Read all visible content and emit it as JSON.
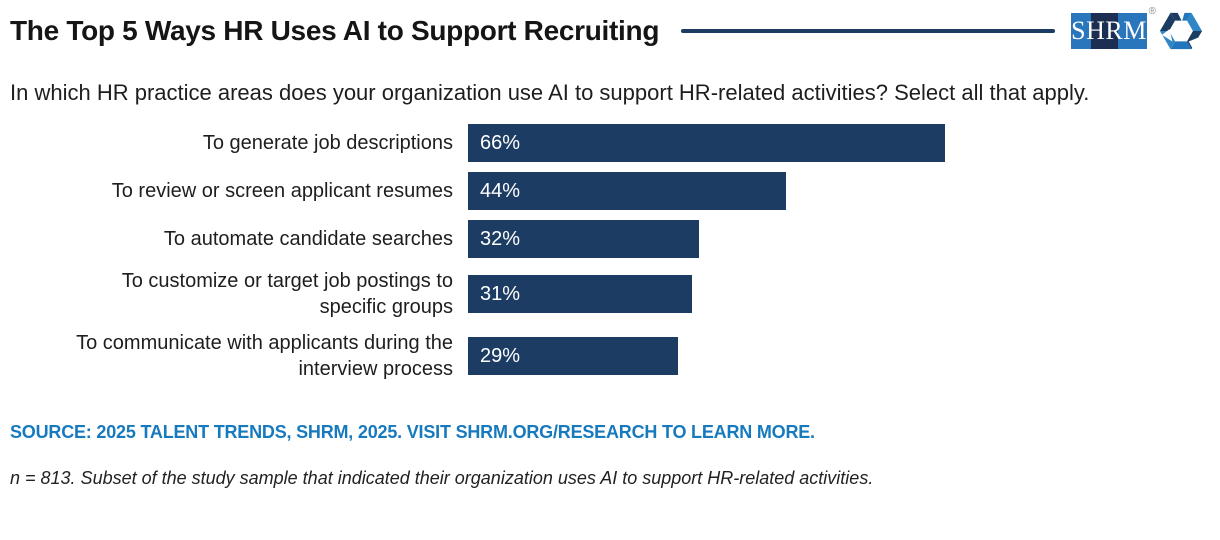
{
  "header": {
    "title": "The Top 5 Ways HR Uses AI to Support Recruiting",
    "divider_color": "#1d3c63",
    "logo": {
      "wordmark": "SHRM",
      "registered": "®",
      "block_blue": "#2a76bd",
      "block_dark": "#1c2f52",
      "hexagon_colors": [
        "#1d3c63",
        "#2176bd",
        "#2e86c6"
      ]
    }
  },
  "question": "In which HR practice areas does your organization use AI to support HR-related activities? Select all that apply.",
  "chart_data": {
    "type": "bar",
    "orientation": "horizontal",
    "categories": [
      "To generate job descriptions",
      "To review or screen applicant resumes",
      "To automate candidate searches",
      "To customize or target job postings to\nspecific groups",
      "To communicate with applicants during the\ninterview process"
    ],
    "values": [
      66,
      44,
      32,
      31,
      29
    ],
    "value_labels": [
      "66%",
      "44%",
      "32%",
      "31%",
      "29%"
    ],
    "bar_color": "#1d3c63",
    "value_label_color": "#ffffff",
    "xlim": [
      0,
      100
    ],
    "grid": false,
    "legend": false
  },
  "footer": {
    "source": "SOURCE: 2025 TALENT TRENDS, SHRM, 2025. VISIT SHRM.ORG/RESEARCH TO LEARN MORE.",
    "source_color": "#187abe",
    "note": "n = 813. Subset of the study sample that indicated their organization uses AI to support HR-related activities."
  }
}
